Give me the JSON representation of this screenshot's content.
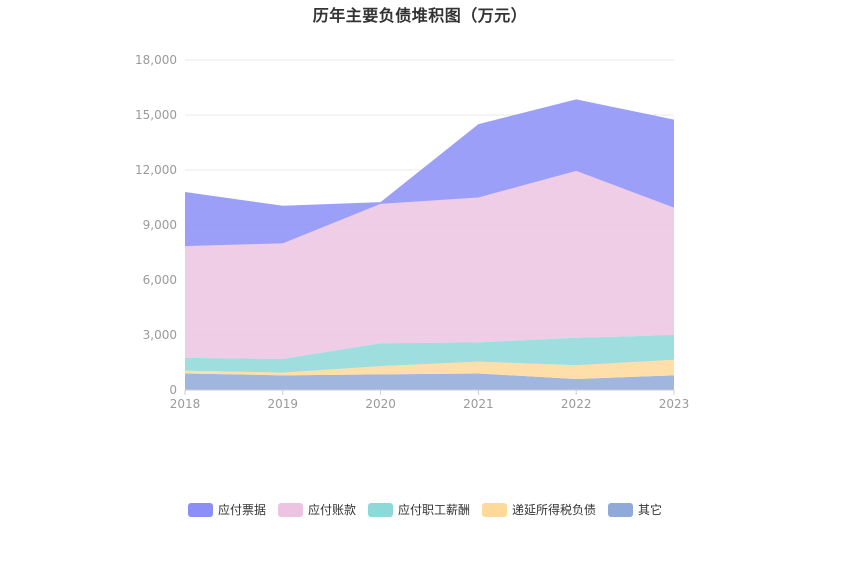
{
  "chart_data": {
    "type": "area",
    "title": "历年主要负债堆积图（万元）",
    "x": [
      "2018",
      "2019",
      "2020",
      "2021",
      "2022",
      "2023"
    ],
    "ylim": [
      0,
      18000
    ],
    "yticks": [
      0,
      3000,
      6000,
      9000,
      12000,
      15000,
      18000
    ],
    "ytick_labels": [
      "0",
      "3,000",
      "6,000",
      "9,000",
      "12,000",
      "15,000",
      "18,000"
    ],
    "stacked": true,
    "grid": true,
    "legend_position": "bottom",
    "series": [
      {
        "name": "其它",
        "color": "#8fa9d8",
        "values": [
          900,
          800,
          850,
          900,
          600,
          800
        ]
      },
      {
        "name": "递延所得税负债",
        "color": "#ffd99a",
        "values": [
          150,
          150,
          450,
          650,
          750,
          850
        ]
      },
      {
        "name": "应付职工薪酬",
        "color": "#8dd8d8",
        "values": [
          700,
          750,
          1250,
          1050,
          1500,
          1350
        ]
      },
      {
        "name": "应付账款",
        "color": "#ecc4e2",
        "values": [
          6100,
          6300,
          7600,
          7900,
          9100,
          6950
        ]
      },
      {
        "name": "应付票据",
        "color": "#8a8ef6",
        "values": [
          2950,
          2050,
          100,
          4000,
          3900,
          4800
        ]
      }
    ],
    "legend_order": [
      "应付票据",
      "应付账款",
      "应付职工薪酬",
      "递延所得税负债",
      "其它"
    ]
  }
}
